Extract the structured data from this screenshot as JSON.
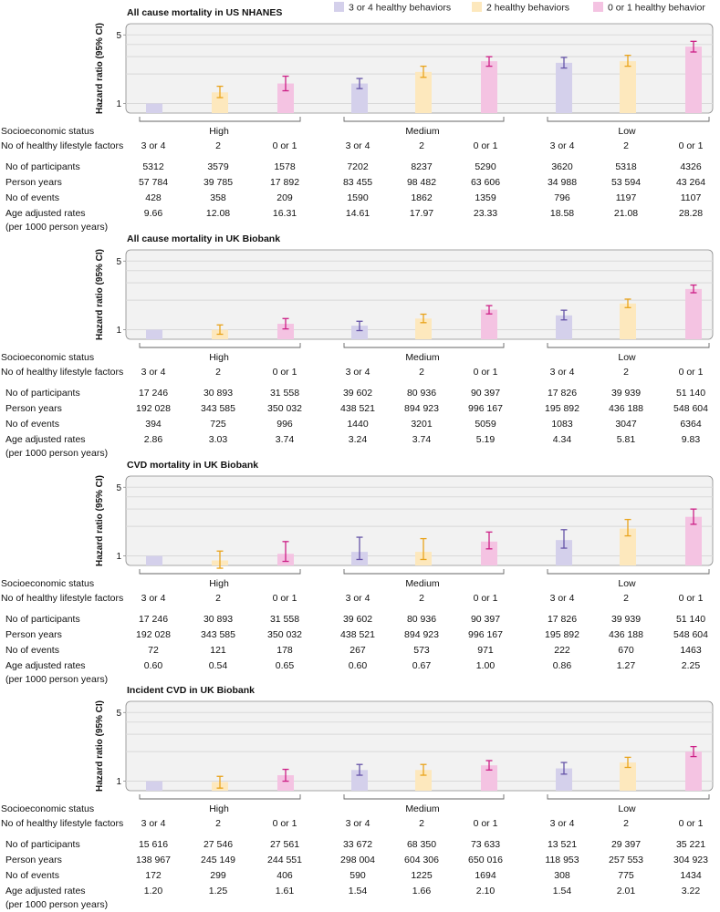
{
  "legend": [
    {
      "label": "3 or 4 healthy behaviors",
      "fill": "#d4d0eb",
      "err": "#6654a8"
    },
    {
      "label": "2 healthy behaviors",
      "fill": "#fde8bd",
      "err": "#e9a31b"
    },
    {
      "label": "0 or 1 healthy behavior",
      "fill": "#f4c3e2",
      "err": "#cc1f86"
    }
  ],
  "colors": {
    "panel_bg": "#f2f2f2",
    "grid": "#d9d9d9",
    "axis": "#8a8a8a"
  },
  "ylabel": "Hazard ratio (95% CI)",
  "ses_label": "Socioeconomic status",
  "factor_label": "No of healthy lifestyle factors",
  "groups": [
    "High",
    "Medium",
    "Low"
  ],
  "factor_levels": [
    "3 or 4",
    "2",
    "0 or 1"
  ],
  "row_labels": [
    "No of participants",
    "Person years",
    "No of events",
    "Age adjusted rates"
  ],
  "rate_sublabel": "(per 1000 person years)",
  "chart_data": [
    {
      "type": "bar",
      "title": "All cause mortality in US NHANES",
      "ylabel": "Hazard ratio (95% CI)",
      "yscale": "log",
      "ylim": [
        0.8,
        6.5
      ],
      "yticks": [
        1,
        5
      ],
      "categories": [
        "High / 3 or 4",
        "High / 2",
        "High / 0 or 1",
        "Medium / 3 or 4",
        "Medium / 2",
        "Medium / 0 or 1",
        "Low / 3 or 4",
        "Low / 2",
        "Low / 0 or 1"
      ],
      "values": [
        1.0,
        1.3,
        1.6,
        1.6,
        2.1,
        2.7,
        2.6,
        2.7,
        3.8
      ],
      "ci_low": [
        1.0,
        1.15,
        1.35,
        1.42,
        1.85,
        2.4,
        2.3,
        2.4,
        3.35
      ],
      "ci_high": [
        1.0,
        1.5,
        1.9,
        1.8,
        2.4,
        3.0,
        2.95,
        3.1,
        4.3
      ],
      "table": {
        "participants": [
          "5312",
          "3579",
          "1578",
          "7202",
          "8237",
          "5290",
          "3620",
          "5318",
          "4326"
        ],
        "person_years": [
          "57 784",
          "39 785",
          "17 892",
          "83 455",
          "98 482",
          "63 606",
          "34 988",
          "53 594",
          "43 264"
        ],
        "events": [
          "428",
          "358",
          "209",
          "1590",
          "1862",
          "1359",
          "796",
          "1197",
          "1107"
        ],
        "rates": [
          "9.66",
          "12.08",
          "16.31",
          "14.61",
          "17.97",
          "23.33",
          "18.58",
          "21.08",
          "28.28"
        ]
      }
    },
    {
      "type": "bar",
      "title": "All cause mortality in UK Biobank",
      "ylabel": "Hazard ratio (95% CI)",
      "yscale": "log",
      "ylim": [
        0.8,
        6.5
      ],
      "yticks": [
        1,
        5
      ],
      "categories": [
        "High / 3 or 4",
        "High / 2",
        "High / 0 or 1",
        "Medium / 3 or 4",
        "Medium / 2",
        "Medium / 0 or 1",
        "Low / 3 or 4",
        "Low / 2",
        "Low / 0 or 1"
      ],
      "values": [
        1.0,
        1.0,
        1.15,
        1.1,
        1.3,
        1.6,
        1.4,
        1.85,
        2.6
      ],
      "ci_low": [
        1.0,
        0.9,
        1.02,
        0.98,
        1.18,
        1.45,
        1.26,
        1.68,
        2.38
      ],
      "ci_high": [
        1.0,
        1.12,
        1.3,
        1.22,
        1.44,
        1.76,
        1.58,
        2.05,
        2.85
      ],
      "table": {
        "participants": [
          "17 246",
          "30 893",
          "31 558",
          "39 602",
          "80 936",
          "90 397",
          "17 826",
          "39 939",
          "51 140"
        ],
        "person_years": [
          "192 028",
          "343 585",
          "350 032",
          "438 521",
          "894 923",
          "996 167",
          "195 892",
          "436 188",
          "548 604"
        ],
        "events": [
          "394",
          "725",
          "996",
          "1440",
          "3201",
          "5059",
          "1083",
          "3047",
          "6364"
        ],
        "rates": [
          "2.86",
          "3.03",
          "3.74",
          "3.24",
          "3.74",
          "5.19",
          "4.34",
          "5.81",
          "9.83"
        ]
      }
    },
    {
      "type": "bar",
      "title": "CVD mortality in UK Biobank",
      "ylabel": "Hazard ratio (95% CI)",
      "yscale": "log",
      "ylim": [
        0.8,
        6.5
      ],
      "yticks": [
        1,
        5
      ],
      "categories": [
        "High / 3 or 4",
        "High / 2",
        "High / 0 or 1",
        "Medium / 3 or 4",
        "Medium / 2",
        "Medium / 0 or 1",
        "Low / 3 or 4",
        "Low / 2",
        "Low / 0 or 1"
      ],
      "values": [
        1.0,
        0.9,
        1.05,
        1.1,
        1.1,
        1.4,
        1.45,
        1.9,
        2.5
      ],
      "ci_low": [
        1.0,
        0.75,
        0.88,
        0.92,
        0.92,
        1.18,
        1.2,
        1.6,
        2.1
      ],
      "ci_high": [
        1.0,
        1.12,
        1.4,
        1.55,
        1.5,
        1.75,
        1.85,
        2.35,
        3.0
      ],
      "table": {
        "participants": [
          "17 246",
          "30 893",
          "31 558",
          "39 602",
          "80 936",
          "90 397",
          "17 826",
          "39 939",
          "51 140"
        ],
        "person_years": [
          "192 028",
          "343 585",
          "350 032",
          "438 521",
          "894 923",
          "996 167",
          "195 892",
          "436 188",
          "548 604"
        ],
        "events": [
          "72",
          "121",
          "178",
          "267",
          "573",
          "971",
          "222",
          "670",
          "1463"
        ],
        "rates": [
          "0.60",
          "0.54",
          "0.65",
          "0.60",
          "0.67",
          "1.00",
          "0.86",
          "1.27",
          "2.25"
        ]
      }
    },
    {
      "type": "bar",
      "title": "Incident CVD in UK Biobank",
      "ylabel": "Hazard ratio (95% CI)",
      "yscale": "log",
      "ylim": [
        0.8,
        6.5
      ],
      "yticks": [
        1,
        5
      ],
      "categories": [
        "High / 3 or 4",
        "High / 2",
        "High / 0 or 1",
        "Medium / 3 or 4",
        "Medium / 2",
        "Medium / 0 or 1",
        "Low / 3 or 4",
        "Low / 2",
        "Low / 0 or 1"
      ],
      "values": [
        1.0,
        0.98,
        1.15,
        1.3,
        1.3,
        1.45,
        1.35,
        1.55,
        2.0
      ],
      "ci_low": [
        1.0,
        0.85,
        1.0,
        1.15,
        1.15,
        1.3,
        1.18,
        1.38,
        1.78
      ],
      "ci_high": [
        1.0,
        1.12,
        1.32,
        1.48,
        1.48,
        1.62,
        1.55,
        1.75,
        2.25
      ],
      "table": {
        "participants": [
          "15 616",
          "27 546",
          "27 561",
          "33 672",
          "68 350",
          "73 633",
          "13 521",
          "29 397",
          "35 221"
        ],
        "person_years": [
          "138 967",
          "245 149",
          "244 551",
          "298 004",
          "604 306",
          "650 016",
          "118 953",
          "257 553",
          "304 923"
        ],
        "events": [
          "172",
          "299",
          "406",
          "590",
          "1225",
          "1694",
          "308",
          "775",
          "1434"
        ],
        "rates": [
          "1.20",
          "1.25",
          "1.61",
          "1.54",
          "1.66",
          "2.10",
          "1.54",
          "2.01",
          "3.22"
        ]
      }
    }
  ]
}
